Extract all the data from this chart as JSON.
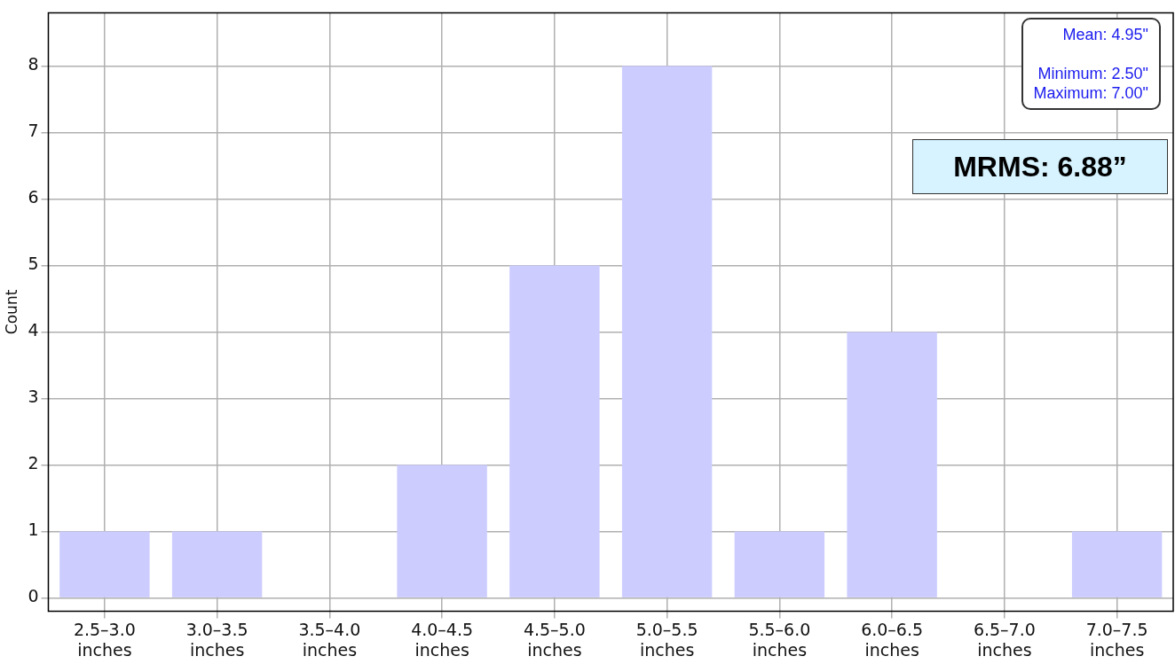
{
  "chart_data": {
    "type": "bar",
    "ylabel": "Count",
    "categories": [
      "2.5–3.0 inches",
      "3.0–3.5 inches",
      "3.5–4.0 inches",
      "4.0–4.5 inches",
      "4.5–5.0 inches",
      "5.0–5.5 inches",
      "5.5–6.0 inches",
      "6.0–6.5 inches",
      "6.5–7.0 inches",
      "7.0–7.5 inches"
    ],
    "values": [
      1,
      1,
      0,
      2,
      5,
      8,
      1,
      4,
      0,
      1
    ],
    "color": "#ccccff",
    "ylim": [
      -0.2,
      8.8
    ],
    "yticks": [
      0,
      1,
      2,
      3,
      4,
      5,
      6,
      7,
      8
    ],
    "grid": true,
    "legend": false,
    "annotations": [
      "Mean: 4.95\"",
      "Minimum: 2.50\"",
      "Maximum: 7.00\"",
      "MRMS: 6.88”"
    ]
  }
}
